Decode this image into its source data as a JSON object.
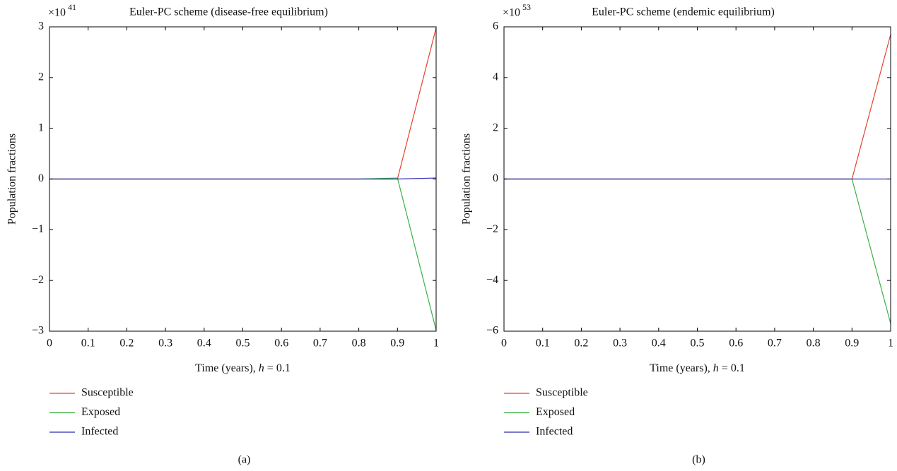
{
  "chart_data": [
    {
      "type": "line",
      "title": "Euler-PC scheme (disease-free equilibrium)",
      "scale_base": "×10",
      "scale_exponent": "41",
      "x_label_parts": [
        "Time (years), ",
        "h",
        " = 0.1"
      ],
      "y_label": "Population fractions",
      "panel_label": "(a)",
      "x": [
        0,
        0.1,
        0.2,
        0.3,
        0.4,
        0.5,
        0.6,
        0.7,
        0.8,
        0.9,
        1
      ],
      "series": [
        {
          "name": "Susceptible",
          "color": "#e8412c",
          "values": [
            0,
            0,
            0,
            0,
            0,
            0,
            0,
            0,
            0,
            0,
            2.98
          ]
        },
        {
          "name": "Exposed",
          "color": "#3bb143",
          "values": [
            0,
            0,
            0,
            0,
            0,
            0,
            0,
            0,
            0,
            0.02,
            -2.98
          ]
        },
        {
          "name": "Infected",
          "color": "#2b2bb0",
          "values": [
            0,
            0,
            0,
            0,
            0,
            0,
            0,
            0,
            0,
            0,
            0.02
          ]
        }
      ],
      "xlim": [
        0,
        1
      ],
      "xticks": [
        0,
        0.1,
        0.2,
        0.3,
        0.4,
        0.5,
        0.6,
        0.7,
        0.8,
        0.9,
        1
      ],
      "ylim": [
        -3,
        3
      ],
      "yticks": [
        {
          "value": -3,
          "label": "−3"
        },
        {
          "value": -2,
          "label": "−2"
        },
        {
          "value": -1,
          "label": "−1"
        },
        0,
        1,
        2,
        3
      ]
    },
    {
      "type": "line",
      "title": "Euler-PC scheme (endemic equilibrium)",
      "scale_base": "×10",
      "scale_exponent": "53",
      "x_label_parts": [
        "Time (years), ",
        "h",
        " = 0.1"
      ],
      "y_label": "Population fractions",
      "panel_label": "(b)",
      "x": [
        0,
        0.1,
        0.2,
        0.3,
        0.4,
        0.5,
        0.6,
        0.7,
        0.8,
        0.9,
        1
      ],
      "series": [
        {
          "name": "Susceptible",
          "color": "#e8412c",
          "values": [
            0,
            0,
            0,
            0,
            0,
            0,
            0,
            0,
            0,
            0,
            5.7
          ]
        },
        {
          "name": "Exposed",
          "color": "#3bb143",
          "values": [
            0,
            0,
            0,
            0,
            0,
            0,
            0,
            0,
            0,
            0,
            -5.7
          ]
        },
        {
          "name": "Infected",
          "color": "#2b2bb0",
          "values": [
            0,
            0,
            0,
            0,
            0,
            0,
            0,
            0,
            0,
            0,
            0
          ]
        }
      ],
      "xlim": [
        0,
        1
      ],
      "xticks": [
        0,
        0.1,
        0.2,
        0.3,
        0.4,
        0.5,
        0.6,
        0.7,
        0.8,
        0.9,
        1
      ],
      "ylim": [
        -6,
        6
      ],
      "yticks": [
        {
          "value": -6,
          "label": "−6"
        },
        {
          "value": -4,
          "label": "−4"
        },
        {
          "value": -2,
          "label": "−2"
        },
        0,
        2,
        4,
        6
      ]
    }
  ]
}
